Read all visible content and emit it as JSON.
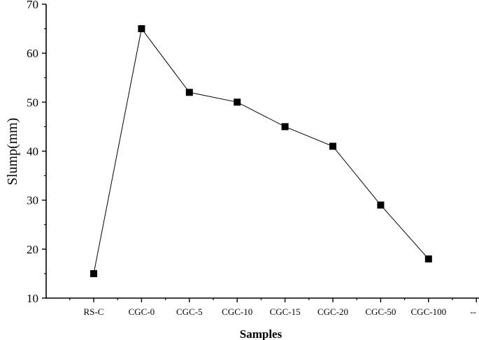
{
  "chart_data": {
    "type": "line",
    "title": "",
    "xlabel": "Samples",
    "ylabel": "Slump(mm)",
    "categories": [
      "RS-C",
      "CGC-0",
      "CGC-5",
      "CGC-10",
      "CGC-15",
      "CGC-20",
      "CGC-50",
      "CGC-100"
    ],
    "trailing_tick_label": "--",
    "yticks": [
      10,
      20,
      30,
      40,
      50,
      60,
      70
    ],
    "ylim": [
      10,
      70
    ],
    "grid": false,
    "series": [
      {
        "values": [
          15,
          65,
          52,
          50,
          45,
          41,
          29,
          18
        ],
        "marker": "square",
        "color": "#000000"
      }
    ]
  }
}
